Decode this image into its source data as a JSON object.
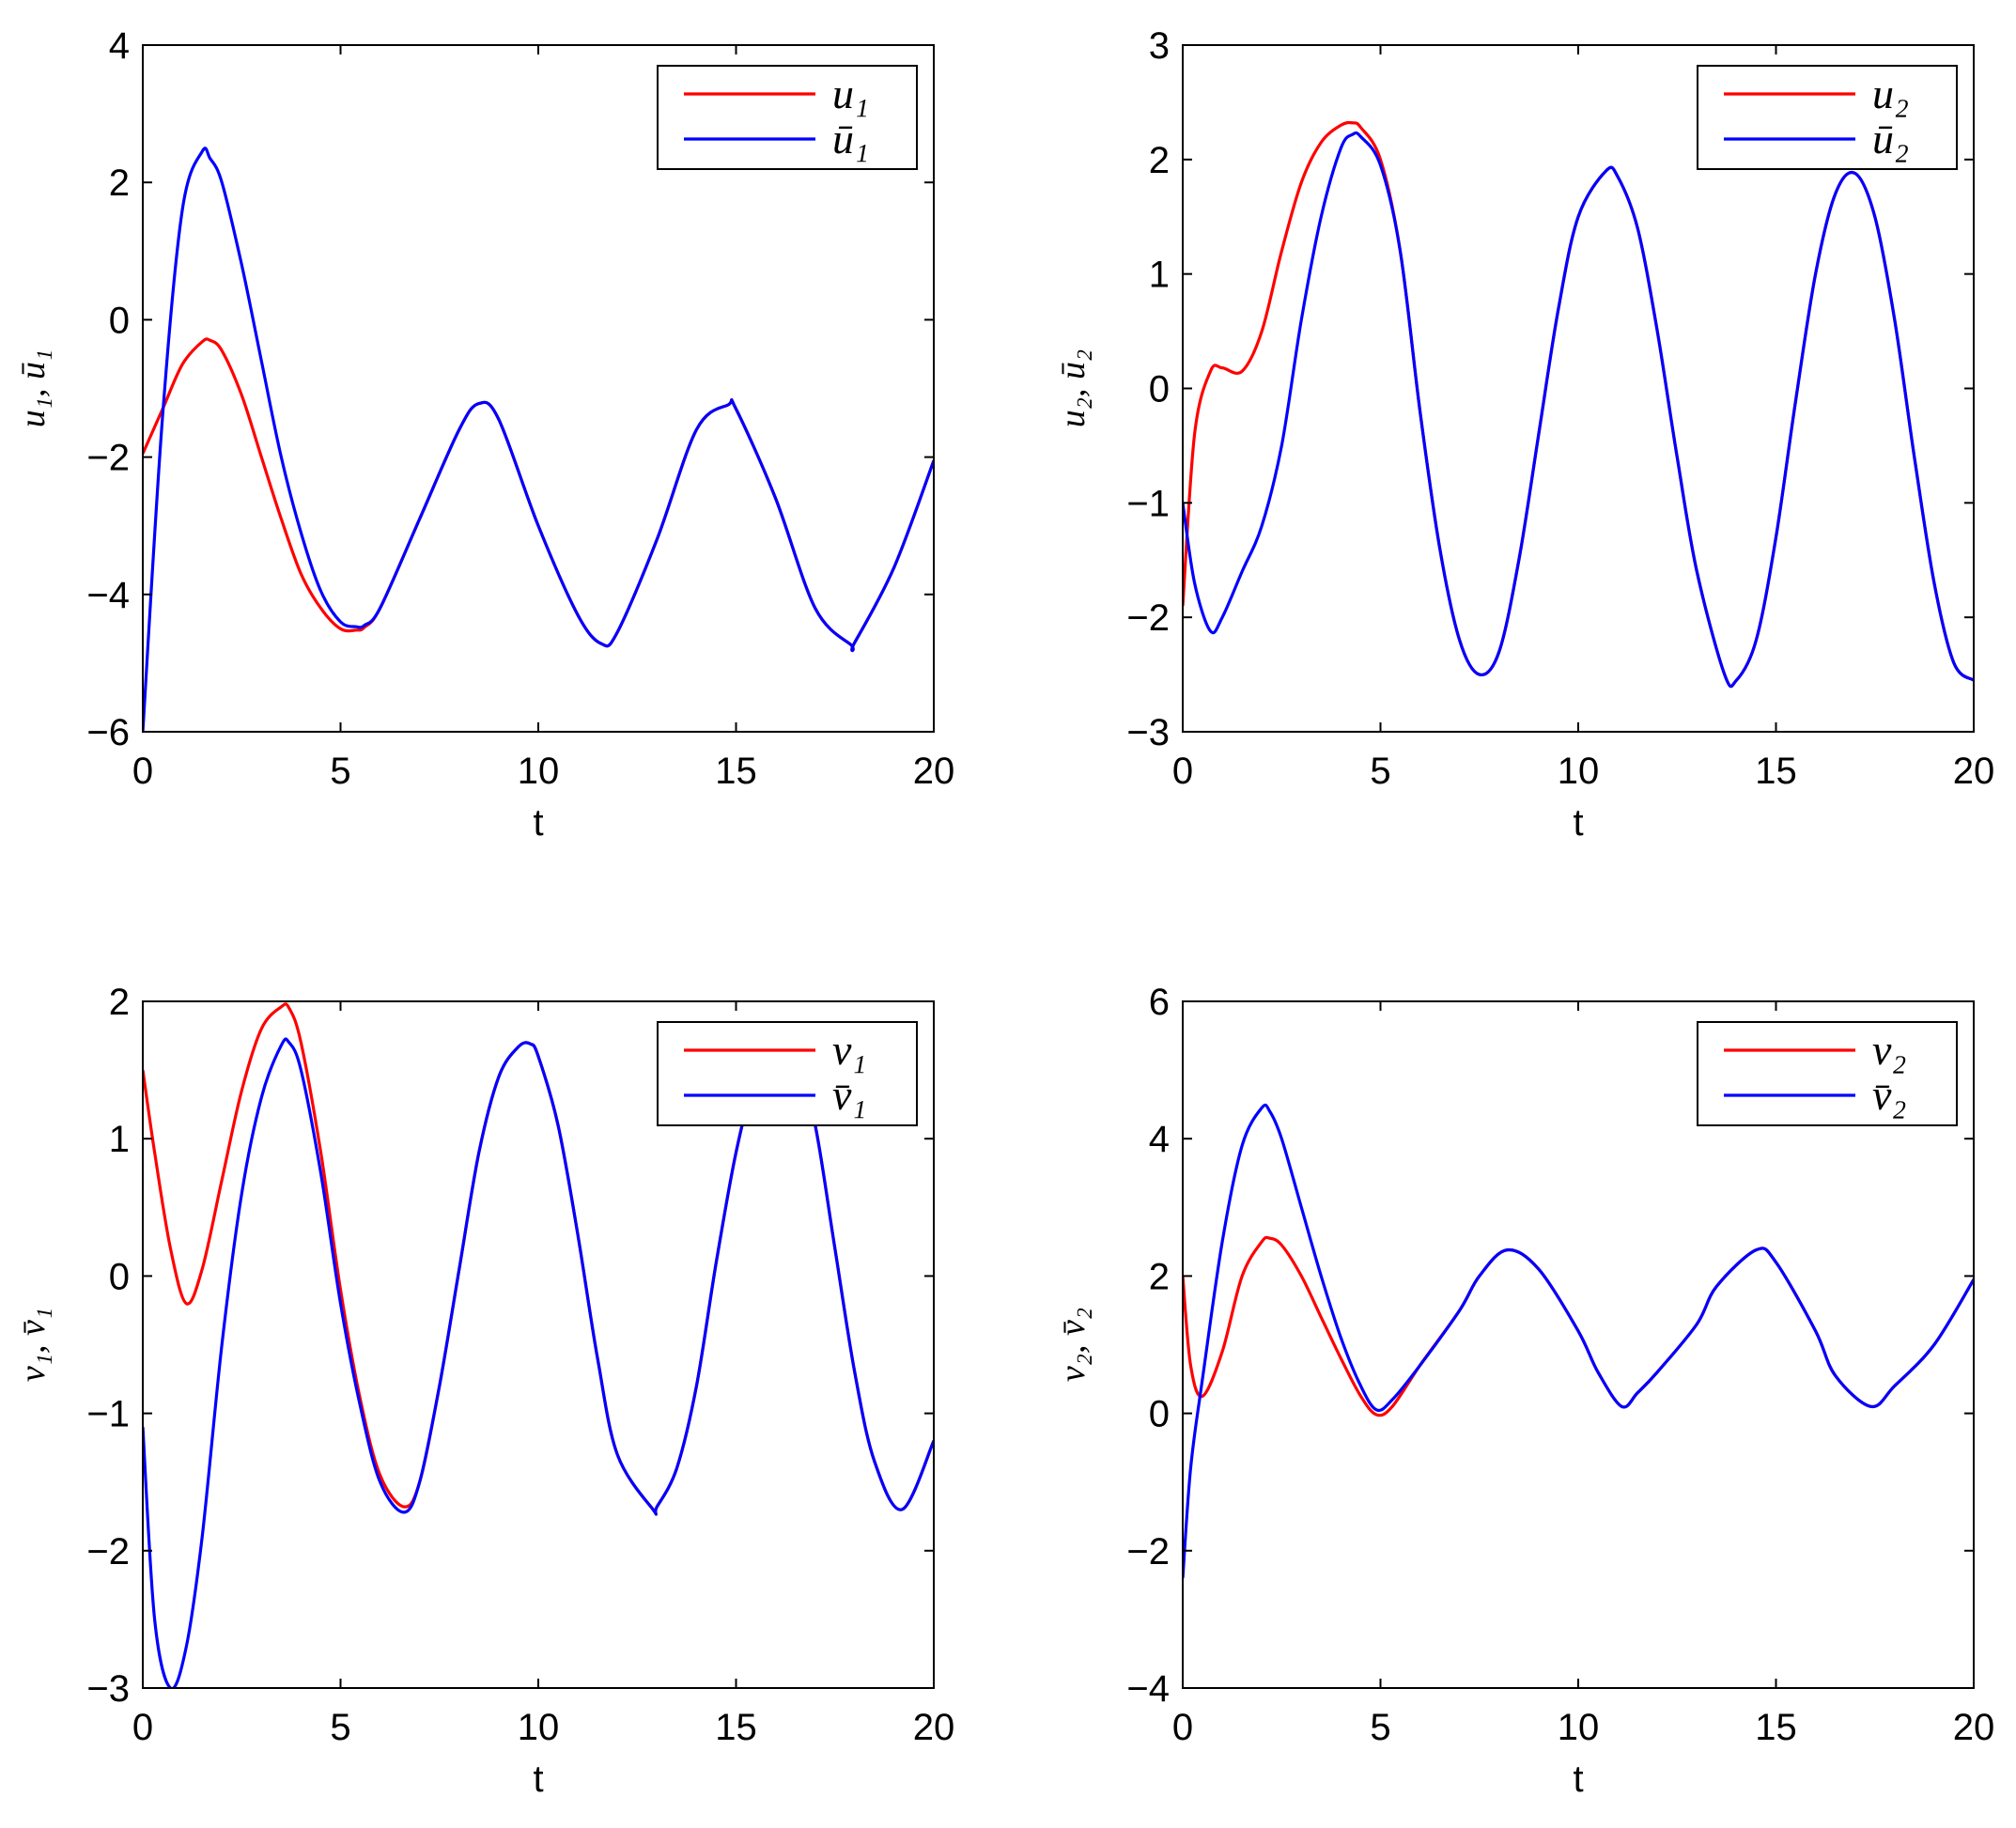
{
  "chart_data": [
    {
      "type": "line",
      "panel": "top-left",
      "xlabel": "t",
      "ylabel": "u₁, ū₁",
      "xlim": [
        0,
        20
      ],
      "ylim": [
        -6,
        4
      ],
      "xticks": [
        "0",
        "5",
        "10",
        "15",
        "20"
      ],
      "yticks": [
        "−6",
        "−4",
        "−2",
        "0",
        "2",
        "4"
      ],
      "legend_position": "top-right",
      "x": [
        0,
        0.5,
        1,
        1.5,
        1.7,
        2,
        2.5,
        3,
        3.5,
        4,
        4.5,
        5,
        5.4,
        5.6,
        6,
        7,
        8,
        8.5,
        9,
        10,
        11,
        11.6,
        12,
        13,
        14,
        14.8,
        15,
        16,
        17,
        17.9,
        18,
        19,
        20
      ],
      "series": [
        {
          "name": "u₁",
          "color": "#ff0000",
          "values": [
            -1.95,
            -1.3,
            -0.65,
            -0.32,
            -0.3,
            -0.45,
            -1.1,
            -2.0,
            -2.9,
            -3.7,
            -4.2,
            -4.5,
            -4.52,
            -4.48,
            -4.2,
            -2.9,
            -1.6,
            -1.22,
            -1.45,
            -3.0,
            -4.3,
            -4.72,
            -4.55,
            -3.2,
            -1.6,
            -1.24,
            -1.3,
            -2.6,
            -4.2,
            -4.73,
            -4.7,
            -3.6,
            -2.05
          ]
        },
        {
          "name": "ū₁",
          "color": "#0000ff",
          "values": [
            -6.0,
            -1.4,
            1.6,
            2.45,
            2.35,
            2.0,
            0.8,
            -0.6,
            -2.0,
            -3.1,
            -3.95,
            -4.4,
            -4.47,
            -4.45,
            -4.2,
            -2.9,
            -1.6,
            -1.22,
            -1.45,
            -3.0,
            -4.3,
            -4.72,
            -4.55,
            -3.2,
            -1.6,
            -1.24,
            -1.3,
            -2.6,
            -4.2,
            -4.73,
            -4.7,
            -3.6,
            -2.05
          ]
        }
      ]
    },
    {
      "type": "line",
      "panel": "top-right",
      "xlabel": "t",
      "ylabel": "u₂, ū₂",
      "xlim": [
        0,
        20
      ],
      "ylim": [
        -3,
        3
      ],
      "xticks": [
        "0",
        "5",
        "10",
        "15",
        "20"
      ],
      "yticks": [
        "−3",
        "−2",
        "−1",
        "0",
        "1",
        "2",
        "3"
      ],
      "legend_position": "top-right",
      "x": [
        0,
        0.3,
        0.7,
        1,
        1.5,
        2,
        2.5,
        3,
        3.5,
        4,
        4.3,
        4.5,
        5,
        5.5,
        6,
        6.5,
        7,
        7.5,
        8,
        8.5,
        9,
        9.5,
        10,
        10.7,
        11,
        11.5,
        12,
        12.5,
        13,
        13.7,
        14,
        14.5,
        15,
        15.5,
        16,
        16.5,
        17,
        17.5,
        18,
        18.5,
        19,
        19.5,
        20
      ],
      "series": [
        {
          "name": "u₂",
          "color": "#ff0000",
          "values": [
            -1.9,
            -0.4,
            0.15,
            0.18,
            0.15,
            0.5,
            1.2,
            1.8,
            2.15,
            2.3,
            2.32,
            2.28,
            2.0,
            1.2,
            -0.2,
            -1.4,
            -2.2,
            -2.5,
            -2.3,
            -1.5,
            -0.4,
            0.7,
            1.5,
            1.9,
            1.85,
            1.4,
            0.5,
            -0.6,
            -1.6,
            -2.5,
            -2.55,
            -2.2,
            -1.3,
            -0.1,
            1.0,
            1.7,
            1.88,
            1.5,
            0.6,
            -0.6,
            -1.7,
            -2.4,
            -2.55
          ]
        },
        {
          "name": "ū₂",
          "color": "#0000ff",
          "values": [
            -1.0,
            -1.7,
            -2.12,
            -2.0,
            -1.6,
            -1.2,
            -0.5,
            0.6,
            1.5,
            2.1,
            2.22,
            2.2,
            1.95,
            1.2,
            -0.2,
            -1.4,
            -2.2,
            -2.5,
            -2.3,
            -1.5,
            -0.4,
            0.7,
            1.5,
            1.9,
            1.85,
            1.4,
            0.5,
            -0.6,
            -1.6,
            -2.5,
            -2.55,
            -2.2,
            -1.3,
            -0.1,
            1.0,
            1.7,
            1.88,
            1.5,
            0.6,
            -0.6,
            -1.7,
            -2.4,
            -2.55
          ]
        }
      ]
    },
    {
      "type": "line",
      "panel": "bottom-left",
      "xlabel": "t",
      "ylabel": "v₁, v̄₁",
      "xlim": [
        0,
        20
      ],
      "ylim": [
        -3,
        2
      ],
      "xticks": [
        "0",
        "5",
        "10",
        "15",
        "20"
      ],
      "yticks": [
        "−3",
        "−2",
        "−1",
        "0",
        "1",
        "2"
      ],
      "legend_position": "top-right",
      "x": [
        0,
        0.3,
        0.7,
        1.1,
        1.5,
        2,
        2.5,
        3,
        3.5,
        3.7,
        4,
        4.5,
        5,
        5.5,
        6,
        6.6,
        7,
        7.5,
        8,
        8.5,
        9,
        9.5,
        9.8,
        10,
        10.5,
        11,
        11.5,
        12,
        12.9,
        13,
        13.5,
        14,
        14.5,
        15,
        15.5,
        16,
        16.5,
        17,
        17.5,
        18,
        18.5,
        19.2,
        20
      ],
      "series": [
        {
          "name": "v₁",
          "color": "#ff0000",
          "values": [
            1.5,
            0.9,
            0.2,
            -0.2,
            0.05,
            0.7,
            1.35,
            1.8,
            1.96,
            1.95,
            1.7,
            0.9,
            -0.1,
            -0.9,
            -1.45,
            -1.68,
            -1.5,
            -0.8,
            0.05,
            0.9,
            1.45,
            1.67,
            1.69,
            1.6,
            1.1,
            0.3,
            -0.6,
            -1.3,
            -1.7,
            -1.68,
            -1.4,
            -0.8,
            0.1,
            0.9,
            1.45,
            1.68,
            1.6,
            1.1,
            0.2,
            -0.7,
            -1.35,
            -1.7,
            -1.2
          ]
        },
        {
          "name": "v̄₁",
          "color": "#0000ff",
          "values": [
            -1.1,
            -2.5,
            -3.0,
            -2.7,
            -1.9,
            -0.5,
            0.6,
            1.3,
            1.68,
            1.7,
            1.5,
            0.75,
            -0.2,
            -0.95,
            -1.5,
            -1.72,
            -1.5,
            -0.8,
            0.05,
            0.9,
            1.45,
            1.67,
            1.69,
            1.6,
            1.1,
            0.3,
            -0.6,
            -1.3,
            -1.7,
            -1.68,
            -1.4,
            -0.8,
            0.1,
            0.9,
            1.45,
            1.68,
            1.6,
            1.1,
            0.2,
            -0.7,
            -1.35,
            -1.7,
            -1.2
          ]
        }
      ]
    },
    {
      "type": "line",
      "panel": "bottom-right",
      "xlabel": "t",
      "ylabel": "v₂, v̄₂",
      "xlim": [
        0,
        20
      ],
      "ylim": [
        -4,
        6
      ],
      "xticks": [
        "0",
        "5",
        "10",
        "15",
        "20"
      ],
      "yticks": [
        "−4",
        "−2",
        "0",
        "2",
        "4",
        "6"
      ],
      "legend_position": "top-right",
      "x": [
        0,
        0.2,
        0.5,
        1,
        1.5,
        2,
        2.2,
        2.5,
        3,
        3.5,
        4,
        4.5,
        4.9,
        5.3,
        6,
        7,
        7.5,
        8.2,
        9,
        10,
        10.5,
        11.1,
        11.5,
        12,
        13,
        13.5,
        14.5,
        15,
        16,
        16.5,
        17.4,
        18,
        19,
        20
      ],
      "series": [
        {
          "name": "v₂",
          "color": "#ff0000",
          "values": [
            2.0,
            0.7,
            0.25,
            0.9,
            2.0,
            2.5,
            2.55,
            2.45,
            2.0,
            1.4,
            0.8,
            0.25,
            -0.02,
            0.1,
            0.7,
            1.5,
            2.0,
            2.38,
            2.1,
            1.2,
            0.6,
            0.1,
            0.3,
            0.6,
            1.3,
            1.85,
            2.38,
            2.2,
            1.2,
            0.55,
            0.1,
            0.4,
            1.0,
            1.95
          ]
        },
        {
          "name": "v̄₂",
          "color": "#0000ff",
          "values": [
            -2.4,
            -0.8,
            0.5,
            2.5,
            3.9,
            4.45,
            4.4,
            4.0,
            3.0,
            2.0,
            1.1,
            0.4,
            0.05,
            0.2,
            0.7,
            1.5,
            2.0,
            2.38,
            2.1,
            1.2,
            0.6,
            0.1,
            0.3,
            0.6,
            1.3,
            1.85,
            2.38,
            2.2,
            1.2,
            0.55,
            0.1,
            0.4,
            1.0,
            1.95
          ]
        }
      ]
    }
  ]
}
